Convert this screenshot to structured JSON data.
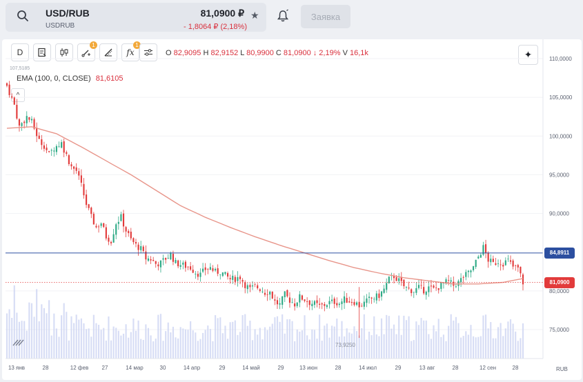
{
  "header": {
    "symbol": "USD/RUB",
    "symbol_sub": "USDRUB",
    "price": "81,0900 ₽",
    "change": "- 1,8064 ₽ (2,18%)",
    "order_button": "Заявка"
  },
  "toolbar": {
    "interval": "D",
    "indicator_badge": "1",
    "fx_label": "fx",
    "fx_badge": "1",
    "ohlc": {
      "o_label": "O",
      "o": "82,9095",
      "h_label": "H",
      "h": "82,9152",
      "l_label": "L",
      "l": "80,9900",
      "c_label": "C",
      "c": "81,0900",
      "change": "↓ 2,19%",
      "v_label": "V",
      "v": "16,1k"
    }
  },
  "indicator": {
    "name": "EMA",
    "params": "(100, 0, CLOSE)",
    "value": "81,6105"
  },
  "chart_data": {
    "type": "candlestick",
    "y_axis": {
      "ticks": [
        "110,0000",
        "105,0000",
        "100,0000",
        "95,0000",
        "90,0000",
        "80,0000",
        "75,0000"
      ],
      "currency": "RUB"
    },
    "x_axis": {
      "ticks": [
        "13 янв",
        "28",
        "12 фев",
        "27",
        "14 мар",
        "30",
        "14 апр",
        "29",
        "14 май",
        "29",
        "13 июн",
        "28",
        "14 июл",
        "29",
        "13 авг",
        "28",
        "12 сен",
        "28"
      ]
    },
    "high_label": "107,5185",
    "low_label": "73,9250",
    "horizontal_line": {
      "value": 84.8911,
      "label": "84,8911",
      "color": "#2c4fa0"
    },
    "last_price": {
      "value": 81.09,
      "label": "81,0900",
      "color": "#e23b3b"
    },
    "close_path": [
      [
        0,
        106.5
      ],
      [
        3,
        104.0
      ],
      [
        5,
        101.2
      ],
      [
        8,
        102.5
      ],
      [
        10,
        101.8
      ],
      [
        13,
        99.4
      ],
      [
        15,
        98.8
      ],
      [
        17,
        97.6
      ],
      [
        19,
        98.5
      ],
      [
        22,
        99.1
      ],
      [
        24,
        97.5
      ],
      [
        26,
        96.0
      ],
      [
        28,
        95.5
      ],
      [
        30,
        93.6
      ],
      [
        32,
        91.2
      ],
      [
        34,
        89.5
      ],
      [
        36,
        88.2
      ],
      [
        38,
        88.8
      ],
      [
        40,
        87.0
      ],
      [
        42,
        86.5
      ],
      [
        44,
        88.8
      ],
      [
        46,
        89.5
      ],
      [
        48,
        87.8
      ],
      [
        50,
        86.6
      ],
      [
        52,
        85.9
      ],
      [
        54,
        85.4
      ],
      [
        56,
        84.2
      ],
      [
        58,
        84.1
      ],
      [
        60,
        83.5
      ],
      [
        62,
        83.6
      ],
      [
        64,
        84.2
      ],
      [
        66,
        84.7
      ],
      [
        68,
        83.6
      ],
      [
        70,
        83.4
      ],
      [
        72,
        83.2
      ],
      [
        74,
        83.0
      ],
      [
        76,
        82.4
      ],
      [
        78,
        82.1
      ],
      [
        80,
        82.8
      ],
      [
        82,
        83.0
      ],
      [
        84,
        82.4
      ],
      [
        86,
        82.5
      ],
      [
        88,
        82.0
      ],
      [
        90,
        81.5
      ],
      [
        92,
        81.6
      ],
      [
        94,
        81.8
      ],
      [
        96,
        80.8
      ],
      [
        98,
        80.2
      ],
      [
        100,
        80.6
      ],
      [
        102,
        80.3
      ],
      [
        104,
        79.8
      ],
      [
        106,
        79.9
      ],
      [
        108,
        78.6
      ],
      [
        110,
        78.2
      ],
      [
        112,
        79.5
      ],
      [
        114,
        78.8
      ],
      [
        116,
        78.3
      ],
      [
        118,
        79.2
      ],
      [
        120,
        78.9
      ],
      [
        122,
        78.5
      ],
      [
        124,
        78.3
      ],
      [
        126,
        78.0
      ],
      [
        128,
        78.2
      ],
      [
        130,
        78.5
      ],
      [
        132,
        78.6
      ],
      [
        134,
        78.4
      ],
      [
        136,
        78.9
      ],
      [
        138,
        78.7
      ],
      [
        140,
        78.6
      ],
      [
        142,
        78.1
      ],
      [
        144,
        78.4
      ],
      [
        146,
        78.9
      ],
      [
        148,
        79.1
      ],
      [
        150,
        79.4
      ],
      [
        152,
        80.2
      ],
      [
        154,
        81.5
      ],
      [
        156,
        81.9
      ],
      [
        158,
        81.3
      ],
      [
        160,
        80.6
      ],
      [
        162,
        80.2
      ],
      [
        164,
        80.0
      ],
      [
        166,
        80.4
      ],
      [
        168,
        80.1
      ],
      [
        170,
        80.4
      ],
      [
        172,
        80.2
      ],
      [
        174,
        80.5
      ],
      [
        176,
        81.0
      ],
      [
        178,
        81.2
      ],
      [
        180,
        80.7
      ],
      [
        182,
        81.1
      ],
      [
        184,
        81.8
      ],
      [
        186,
        82.3
      ],
      [
        188,
        83.0
      ],
      [
        190,
        84.4
      ],
      [
        192,
        85.6
      ],
      [
        194,
        84.0
      ],
      [
        196,
        83.5
      ],
      [
        198,
        83.8
      ],
      [
        200,
        83.6
      ],
      [
        202,
        83.9
      ],
      [
        204,
        83.1
      ],
      [
        206,
        82.9
      ],
      [
        208,
        81.1
      ]
    ],
    "ema_path": [
      [
        0,
        101.0
      ],
      [
        10,
        101.2
      ],
      [
        20,
        100.3
      ],
      [
        30,
        98.6
      ],
      [
        40,
        96.8
      ],
      [
        50,
        95.0
      ],
      [
        60,
        93.0
      ],
      [
        70,
        91.0
      ],
      [
        80,
        89.5
      ],
      [
        90,
        88.2
      ],
      [
        100,
        87.0
      ],
      [
        110,
        85.9
      ],
      [
        120,
        84.9
      ],
      [
        130,
        83.9
      ],
      [
        140,
        83.0
      ],
      [
        150,
        82.3
      ],
      [
        160,
        81.7
      ],
      [
        170,
        81.3
      ],
      [
        180,
        80.9
      ],
      [
        190,
        80.9
      ],
      [
        200,
        81.1
      ],
      [
        208,
        81.6
      ]
    ]
  }
}
